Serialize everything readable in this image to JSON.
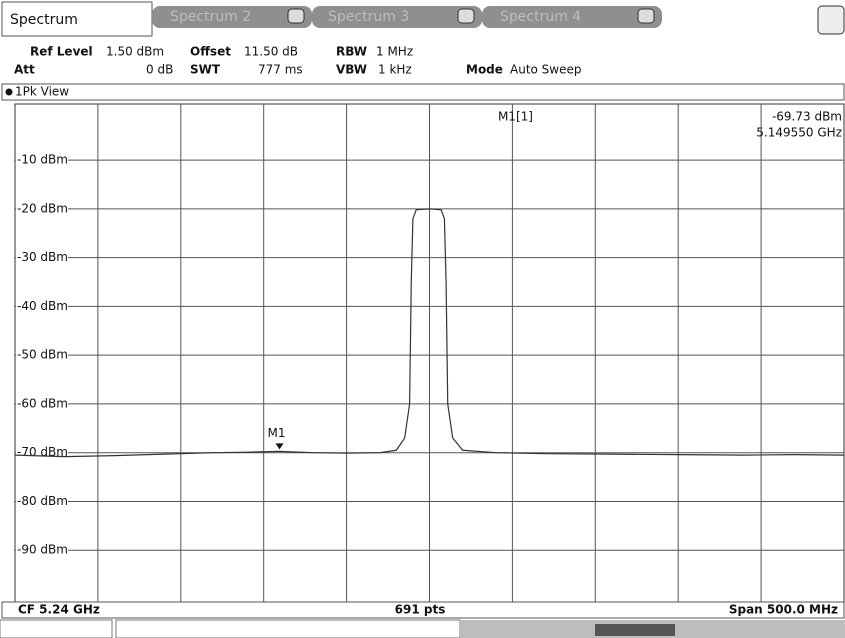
{
  "tabs": [
    "Spectrum",
    "Spectrum 2",
    "Spectrum 3",
    "Spectrum 4"
  ],
  "settings": {
    "ref_level_label": "Ref Level",
    "ref_level": "1.50 dBm",
    "offset_label": "Offset",
    "offset": "11.50 dB",
    "rbw_label": "RBW",
    "rbw": "1 MHz",
    "att_label": "Att",
    "att": "0 dB",
    "swt_label": "SWT",
    "swt": "777 ms",
    "vbw_label": "VBW",
    "vbw": "1 kHz",
    "mode_label": "Mode",
    "mode": "Auto Sweep"
  },
  "view": "1Pk View",
  "footer": {
    "center": "CF 5.24 GHz",
    "points": "691 pts",
    "span": "Span 500.0 MHz"
  },
  "chart_data": {
    "type": "line",
    "xlim": [
      4.99,
      5.49
    ],
    "ylim": [
      -100,
      1.5
    ],
    "yticks": [
      {
        "value": -10,
        "label": "-10 dBm"
      },
      {
        "value": -20,
        "label": "-20 dBm"
      },
      {
        "value": -30,
        "label": "-30 dBm"
      },
      {
        "value": -40,
        "label": "-40 dBm"
      },
      {
        "value": -50,
        "label": "-50 dBm"
      },
      {
        "value": -60,
        "label": "-60 dBm"
      },
      {
        "value": -70,
        "label": "-70 dBm"
      },
      {
        "value": -80,
        "label": "-80 dBm"
      },
      {
        "value": -90,
        "label": "-90 dBm"
      }
    ],
    "grid": true,
    "x": [
      4.99,
      5.02,
      5.05,
      5.08,
      5.11,
      5.13,
      5.14955,
      5.17,
      5.19,
      5.21,
      5.22,
      5.225,
      5.228,
      5.229,
      5.23,
      5.232,
      5.24,
      5.247,
      5.249,
      5.25,
      5.251,
      5.254,
      5.26,
      5.28,
      5.31,
      5.35,
      5.39,
      5.43,
      5.46,
      5.49
    ],
    "series": [
      {
        "color": "#333333",
        "values": [
          -70.5,
          -70.8,
          -70.6,
          -70.3,
          -70.0,
          -69.9,
          -69.73,
          -70.0,
          -70.1,
          -70.0,
          -69.5,
          -67,
          -60,
          -35,
          -22,
          -20.2,
          -20.0,
          -20.2,
          -22,
          -35,
          -60,
          -67,
          -69.5,
          -70.0,
          -70.2,
          -70.3,
          -70.4,
          -70.5,
          -70.4,
          -70.5
        ]
      }
    ],
    "marker": {
      "label": "M1",
      "readout": "M1[1]",
      "x": 5.14955,
      "y": -69.73,
      "x_label": "5.149550 GHz",
      "y_label": "-69.73 dBm"
    }
  }
}
